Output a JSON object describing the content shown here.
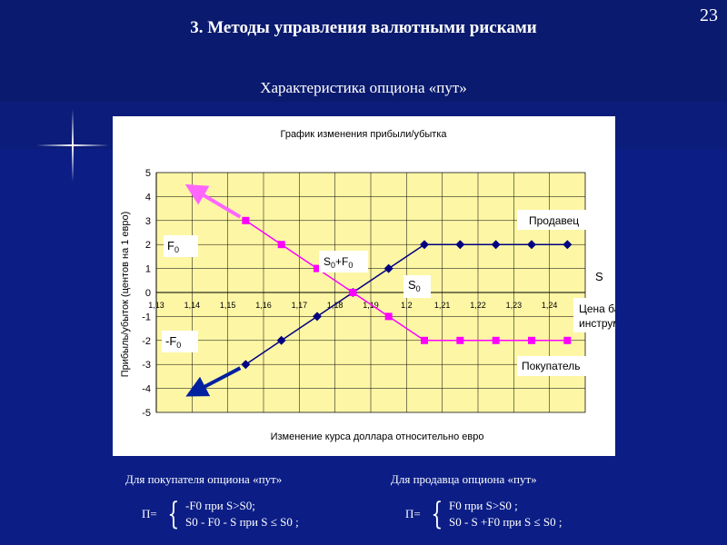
{
  "slide": {
    "number": "23",
    "title": "3. Методы управления валютными рисками",
    "subtitle": "Характеристика опциона «пут»",
    "colors": {
      "background": "#0a1a6e",
      "band": "#0c1e86"
    }
  },
  "chart_data": {
    "type": "line",
    "title": "График изменения прибыли/убытка",
    "xlabel": "Изменение курса доллара относительно евро",
    "ylabel": "Прибыль/убыток (центов на 1 евро)",
    "categories": [
      "1,13",
      "1,14",
      "1,15",
      "1,16",
      "1,17",
      "1,18",
      "1,19",
      "1,2",
      "1,21",
      "1,22",
      "1,23",
      "1,24"
    ],
    "ylim": [
      -5,
      5
    ],
    "yticks": [
      5,
      4,
      3,
      2,
      1,
      0,
      -1,
      -2,
      -3,
      -4,
      -5
    ],
    "grid": true,
    "plot_background": "#fdf6a5",
    "series": [
      {
        "color": "#000080",
        "marker": "diamond",
        "values": [
          null,
          null,
          -3,
          -2,
          -1,
          0,
          1,
          2,
          2,
          2,
          2,
          2
        ]
      },
      {
        "color": "#ff00ff",
        "marker": "square",
        "values": [
          null,
          null,
          3,
          2,
          1,
          0,
          -1,
          -2,
          -2,
          -2,
          -2,
          -2
        ]
      }
    ],
    "annotations": {
      "seller": "Продавец",
      "buyer": "Покупатель",
      "base_price": "Цена базового инструмента (евро)",
      "s": "S",
      "s0": "S0",
      "s0_plus_f0": "S0+F0",
      "f0": "F0",
      "minus_f0": "-F0"
    }
  },
  "formulas": {
    "buyer": {
      "caption": "Для покупателя опциона «пут»",
      "pi": "П=",
      "line1": "-F0 при S>S0;",
      "line2": "S0 - F0 - S при S ≤ S0 ;"
    },
    "seller": {
      "caption": "Для продавца опциона «пут»",
      "pi": "П=",
      "line1": "F0 при S>S0 ;",
      "line2": "S0 - S +F0 при S ≤ S0 ;"
    }
  }
}
